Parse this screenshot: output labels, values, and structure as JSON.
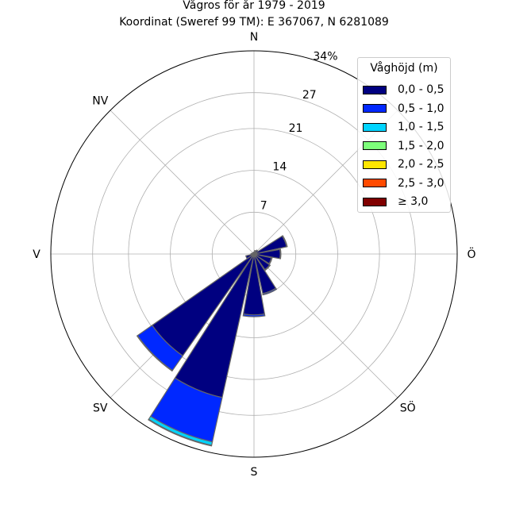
{
  "title_line1": "Vågros för år 1979 - 2019",
  "title_line2": "Koordinat (Sweref 99 TM): E 367067, N 6281089",
  "chart_data": {
    "type": "polar-stacked-bar",
    "direction_labels": [
      "N",
      "Ö",
      "S",
      "V",
      "NV",
      "SV",
      "SÖ"
    ],
    "radial_tick_labels": [
      "7",
      "14",
      "21",
      "27",
      "34%"
    ],
    "radial_ticks": [
      7,
      14,
      21,
      27,
      34
    ],
    "rmax": 34,
    "legend": {
      "title": "Våghöjd (m)",
      "items": [
        {
          "label": "0,0 - 0,5",
          "color": "#000080"
        },
        {
          "label": "0,5 - 1,0",
          "color": "#0028ff"
        },
        {
          "label": "1,0 - 1,5",
          "color": "#00d4ff"
        },
        {
          "label": "1,5 - 2,0",
          "color": "#7dff7a"
        },
        {
          "label": "2,0 - 2,5",
          "color": "#ffe600"
        },
        {
          "label": "2,5 - 3,0",
          "color": "#ff4a00"
        },
        {
          "label": "≥ 3,0",
          "color": "#800000"
        }
      ]
    },
    "sectors": [
      {
        "direction_deg": 0,
        "values": [
          0.3,
          0,
          0,
          0,
          0,
          0,
          0
        ]
      },
      {
        "direction_deg": 22.5,
        "values": [
          0.6,
          0,
          0,
          0,
          0,
          0,
          0
        ]
      },
      {
        "direction_deg": 45,
        "values": [
          0.8,
          0,
          0,
          0,
          0,
          0,
          0
        ]
      },
      {
        "direction_deg": 67.5,
        "values": [
          5.6,
          0.1,
          0,
          0,
          0,
          0,
          0
        ]
      },
      {
        "direction_deg": 90,
        "values": [
          4.4,
          0.1,
          0,
          0,
          0,
          0,
          0
        ]
      },
      {
        "direction_deg": 112.5,
        "values": [
          3.0,
          0.1,
          0,
          0,
          0,
          0,
          0
        ]
      },
      {
        "direction_deg": 135,
        "values": [
          3.2,
          0.1,
          0,
          0,
          0,
          0,
          0
        ]
      },
      {
        "direction_deg": 157.5,
        "values": [
          6.8,
          0.2,
          0,
          0,
          0,
          0,
          0
        ]
      },
      {
        "direction_deg": 180,
        "values": [
          10.2,
          0.3,
          0,
          0,
          0,
          0,
          0
        ]
      },
      {
        "direction_deg": 202.5,
        "values": [
          24.6,
          7.6,
          0.6,
          0.1,
          0,
          0,
          0
        ]
      },
      {
        "direction_deg": 225,
        "values": [
          20.8,
          3.0,
          0.1,
          0,
          0,
          0,
          0
        ]
      },
      {
        "direction_deg": 247.5,
        "values": [
          1.4,
          0,
          0,
          0,
          0,
          0,
          0
        ]
      },
      {
        "direction_deg": 270,
        "values": [
          0.5,
          0,
          0,
          0,
          0,
          0,
          0
        ]
      },
      {
        "direction_deg": 292.5,
        "values": [
          0.3,
          0,
          0,
          0,
          0,
          0,
          0
        ]
      },
      {
        "direction_deg": 315,
        "values": [
          0.3,
          0,
          0,
          0,
          0,
          0,
          0
        ]
      },
      {
        "direction_deg": 337.5,
        "values": [
          0.2,
          0,
          0,
          0,
          0,
          0,
          0
        ]
      }
    ],
    "grid": true,
    "legend_position": "top-right"
  }
}
